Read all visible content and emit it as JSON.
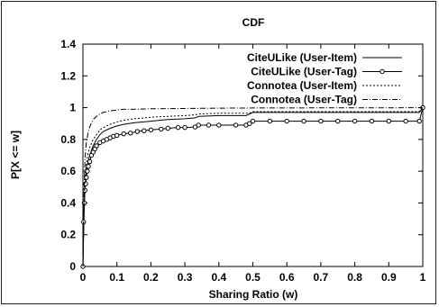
{
  "chart_data": {
    "type": "line",
    "title": "CDF",
    "xlabel": "Sharing Ratio (w)",
    "ylabel": "P[X <= w]",
    "xlim": [
      0,
      1
    ],
    "ylim": [
      0,
      1.4
    ],
    "xticks": [
      "0",
      "0.1",
      "0.2",
      "0.3",
      "0.4",
      "0.5",
      "0.6",
      "0.7",
      "0.8",
      "0.9",
      "1"
    ],
    "yticks": [
      "0",
      "0.2",
      "0.4",
      "0.6",
      "0.8",
      "1",
      "1.2",
      "1.4"
    ],
    "grid": false,
    "legend_position": "top-right",
    "series": [
      {
        "name": "CiteULike (User-Item)",
        "style": "solid",
        "color": "#000000",
        "x": [
          0,
          0.003,
          0.006,
          0.01,
          0.015,
          0.02,
          0.03,
          0.04,
          0.05,
          0.06,
          0.08,
          0.1,
          0.12,
          0.15,
          0.2,
          0.25,
          0.3,
          0.33,
          0.34,
          0.4,
          0.48,
          0.49,
          0.5,
          0.6,
          0.7,
          0.8,
          0.9,
          0.99,
          1.0
        ],
        "y": [
          0,
          0.3,
          0.5,
          0.6,
          0.66,
          0.7,
          0.76,
          0.8,
          0.83,
          0.85,
          0.87,
          0.885,
          0.895,
          0.905,
          0.915,
          0.925,
          0.93,
          0.935,
          0.945,
          0.95,
          0.95,
          0.96,
          0.97,
          0.97,
          0.97,
          0.97,
          0.97,
          0.97,
          1.0
        ]
      },
      {
        "name": "CiteULike (User-Tag)",
        "style": "solid-circles",
        "color": "#000000",
        "x": [
          0,
          0.002,
          0.004,
          0.006,
          0.008,
          0.01,
          0.013,
          0.016,
          0.02,
          0.025,
          0.03,
          0.035,
          0.04,
          0.05,
          0.06,
          0.07,
          0.08,
          0.09,
          0.1,
          0.12,
          0.14,
          0.16,
          0.18,
          0.2,
          0.23,
          0.25,
          0.28,
          0.3,
          0.33,
          0.34,
          0.37,
          0.4,
          0.45,
          0.48,
          0.49,
          0.5,
          0.55,
          0.6,
          0.65,
          0.7,
          0.75,
          0.8,
          0.85,
          0.9,
          0.95,
          0.99,
          1.0
        ],
        "y": [
          0,
          0.28,
          0.4,
          0.48,
          0.52,
          0.56,
          0.6,
          0.63,
          0.66,
          0.7,
          0.72,
          0.74,
          0.76,
          0.78,
          0.79,
          0.8,
          0.81,
          0.82,
          0.825,
          0.835,
          0.84,
          0.85,
          0.855,
          0.86,
          0.865,
          0.87,
          0.875,
          0.875,
          0.878,
          0.89,
          0.89,
          0.89,
          0.89,
          0.89,
          0.9,
          0.915,
          0.915,
          0.915,
          0.915,
          0.915,
          0.915,
          0.915,
          0.915,
          0.915,
          0.915,
          0.915,
          1.0
        ]
      },
      {
        "name": "Connotea (User-Item)",
        "style": "dotted",
        "color": "#000000",
        "x": [
          0,
          0.003,
          0.006,
          0.01,
          0.015,
          0.02,
          0.03,
          0.04,
          0.05,
          0.06,
          0.08,
          0.1,
          0.12,
          0.15,
          0.2,
          0.25,
          0.3,
          0.33,
          0.34,
          0.4,
          0.49,
          0.5,
          0.6,
          0.7,
          0.8,
          0.9,
          0.99,
          1.0
        ],
        "y": [
          0,
          0.35,
          0.55,
          0.65,
          0.71,
          0.75,
          0.8,
          0.83,
          0.86,
          0.875,
          0.895,
          0.91,
          0.92,
          0.93,
          0.94,
          0.945,
          0.95,
          0.955,
          0.96,
          0.965,
          0.965,
          0.975,
          0.975,
          0.975,
          0.975,
          0.975,
          0.975,
          1.0
        ]
      },
      {
        "name": "Connotea (User-Tag)",
        "style": "dash-dot",
        "color": "#000000",
        "x": [
          0,
          0.003,
          0.006,
          0.01,
          0.015,
          0.02,
          0.03,
          0.04,
          0.05,
          0.06,
          0.08,
          0.1,
          0.12,
          0.15,
          0.2,
          0.3,
          0.4,
          0.5,
          0.6,
          0.7,
          0.8,
          0.9,
          1.0
        ],
        "y": [
          0,
          0.45,
          0.68,
          0.78,
          0.84,
          0.88,
          0.925,
          0.945,
          0.96,
          0.97,
          0.98,
          0.985,
          0.99,
          0.99,
          0.993,
          0.995,
          0.997,
          0.998,
          0.998,
          0.999,
          0.999,
          0.999,
          1.0
        ]
      }
    ]
  }
}
